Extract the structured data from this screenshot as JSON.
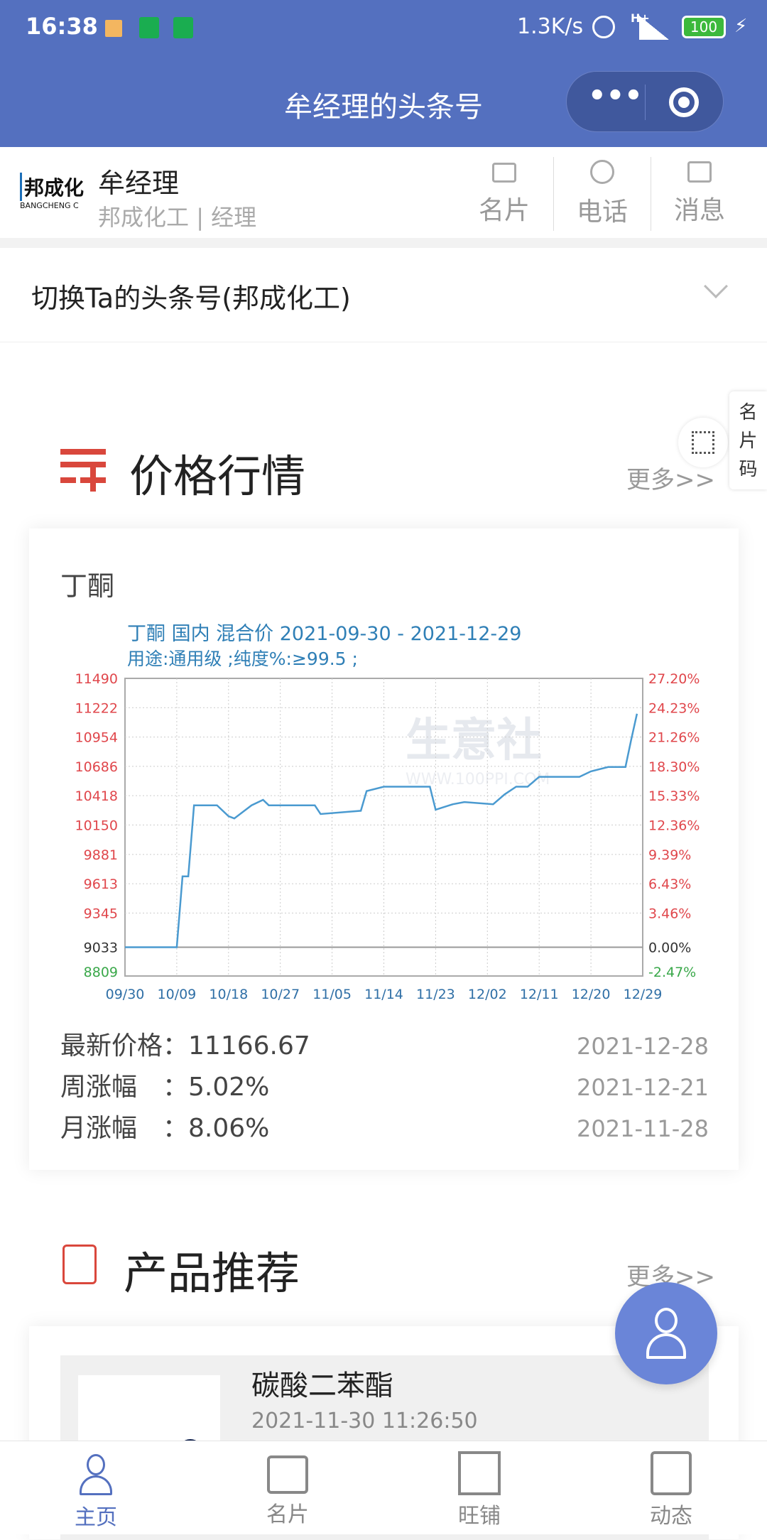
{
  "status_bar": {
    "time": "16:38",
    "network_speed": "1.3K/s",
    "signal": "H+",
    "battery": "100"
  },
  "nav": {
    "title": "牟经理的头条号",
    "more_icon": "ellipsis-icon",
    "close_icon": "target-circle-icon"
  },
  "profile": {
    "logo_text": "邦成化",
    "logo_sub": "BANGCHENG C",
    "name": "牟经理",
    "company": "邦成化工",
    "role": "经理",
    "separator": "|",
    "actions": [
      {
        "label": "名片",
        "icon": "card-icon"
      },
      {
        "label": "电话",
        "icon": "phone-icon"
      },
      {
        "label": "消息",
        "icon": "message-icon"
      }
    ]
  },
  "switch": {
    "label": "切换Ta的头条号(邦成化工)"
  },
  "side_widget": {
    "label": [
      "名",
      "片",
      "码"
    ]
  },
  "price_section": {
    "title": "价格行情",
    "more": "更多>>",
    "product": "丁酮",
    "stats": [
      {
        "label": "最新价格：",
        "value": "11166.67",
        "date": "2021-12-28"
      },
      {
        "label": "周涨幅　：",
        "value": "5.02%",
        "date": "2021-12-21"
      },
      {
        "label": "月涨幅　：",
        "value": "8.06%",
        "date": "2021-11-28"
      }
    ]
  },
  "chart_data": {
    "type": "line",
    "title": "丁酮 国内 混合价 2021-09-30 - 2021-12-29",
    "subtitle": "用途:通用级 ;纯度%:≥99.5 ;",
    "watermark": "生意社 WWW.100PPI.COM",
    "grid": true,
    "line_color": "#4a9ad0",
    "x_ticks": [
      "09/30",
      "10/09",
      "10/18",
      "10/27",
      "11/05",
      "11/14",
      "11/23",
      "12/02",
      "12/11",
      "12/20",
      "12/29"
    ],
    "y_left_ticks": [
      11490,
      11222,
      10954,
      10686,
      10418,
      10150,
      9881,
      9613,
      9345,
      9033,
      8809
    ],
    "y_right_ticks": [
      "27.20%",
      "24.23%",
      "21.26%",
      "18.30%",
      "15.33%",
      "12.36%",
      "9.39%",
      "6.43%",
      "3.46%",
      "0.00%",
      "-2.47%"
    ],
    "ylim": [
      8770,
      11490
    ],
    "x": [
      "2021-09-30",
      "2021-10-09",
      "2021-10-10",
      "2021-10-11",
      "2021-10-12",
      "2021-10-16",
      "2021-10-18",
      "2021-10-19",
      "2021-10-22",
      "2021-10-24",
      "2021-10-25",
      "2021-11-02",
      "2021-11-03",
      "2021-11-10",
      "2021-11-11",
      "2021-11-14",
      "2021-11-22",
      "2021-11-23",
      "2021-11-26",
      "2021-11-28",
      "2021-12-03",
      "2021-12-05",
      "2021-12-07",
      "2021-12-09",
      "2021-12-11",
      "2021-12-18",
      "2021-12-20",
      "2021-12-23",
      "2021-12-26",
      "2021-12-27",
      "2021-12-28"
    ],
    "values": [
      9033,
      9033,
      9680,
      9680,
      10330,
      10330,
      10230,
      10210,
      10330,
      10380,
      10330,
      10330,
      10250,
      10280,
      10460,
      10500,
      10500,
      10290,
      10340,
      10360,
      10340,
      10430,
      10500,
      10500,
      10590,
      10590,
      10640,
      10680,
      10680,
      10930,
      11167
    ]
  },
  "product_section": {
    "title": "产品推荐",
    "more": "更多>>",
    "items": [
      {
        "name": "碳酸二苯酯",
        "date": "2021-11-30 11:26:50"
      }
    ]
  },
  "bottom_nav": [
    {
      "label": "主页",
      "icon": "user-icon",
      "active": true
    },
    {
      "label": "名片",
      "icon": "card-icon"
    },
    {
      "label": "旺铺",
      "icon": "building-icon"
    },
    {
      "label": "动态",
      "icon": "news-icon"
    }
  ],
  "colors": {
    "primary": "#5470bf",
    "accent_red": "#d9473c"
  }
}
